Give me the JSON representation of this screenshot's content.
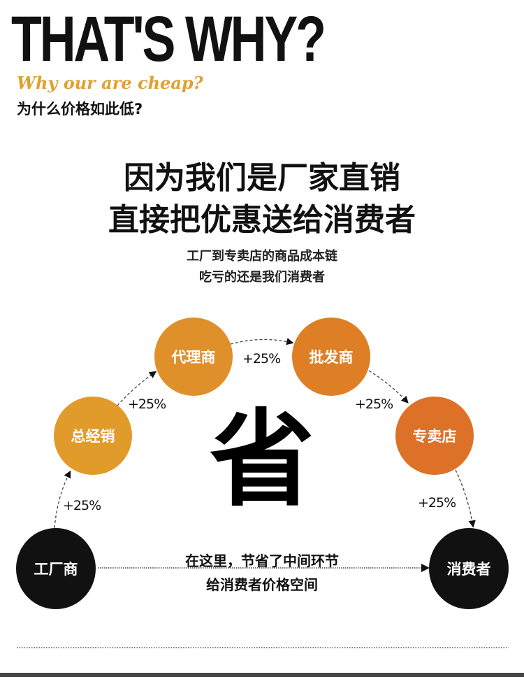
{
  "header": {
    "title": "THAT'S WHY?",
    "subtitle_en": "Why our are cheap?",
    "subtitle_cn": "为什么价格如此低?"
  },
  "headline": [
    "因为我们是厂家直销",
    "直接把优惠送给消费者"
  ],
  "subtext": [
    "工厂到专卖店的商品成本链",
    "吃亏的还是我们消费者"
  ],
  "flow": {
    "nodes": [
      {
        "label": "工厂商",
        "color": "#111111"
      },
      {
        "label": "总经销",
        "color": "#e09b2b"
      },
      {
        "label": "代理商",
        "color": "#e0902b"
      },
      {
        "label": "批发商",
        "color": "#de7f25"
      },
      {
        "label": "专卖店",
        "color": "#dd7128"
      },
      {
        "label": "消费者",
        "color": "#111111"
      }
    ],
    "markups": [
      "+25%",
      "+25%",
      "+25%",
      "+25%",
      "+25%"
    ],
    "center_char": "省",
    "note": [
      "在这里，节省了中间环节",
      "给消费者价格空间"
    ]
  }
}
